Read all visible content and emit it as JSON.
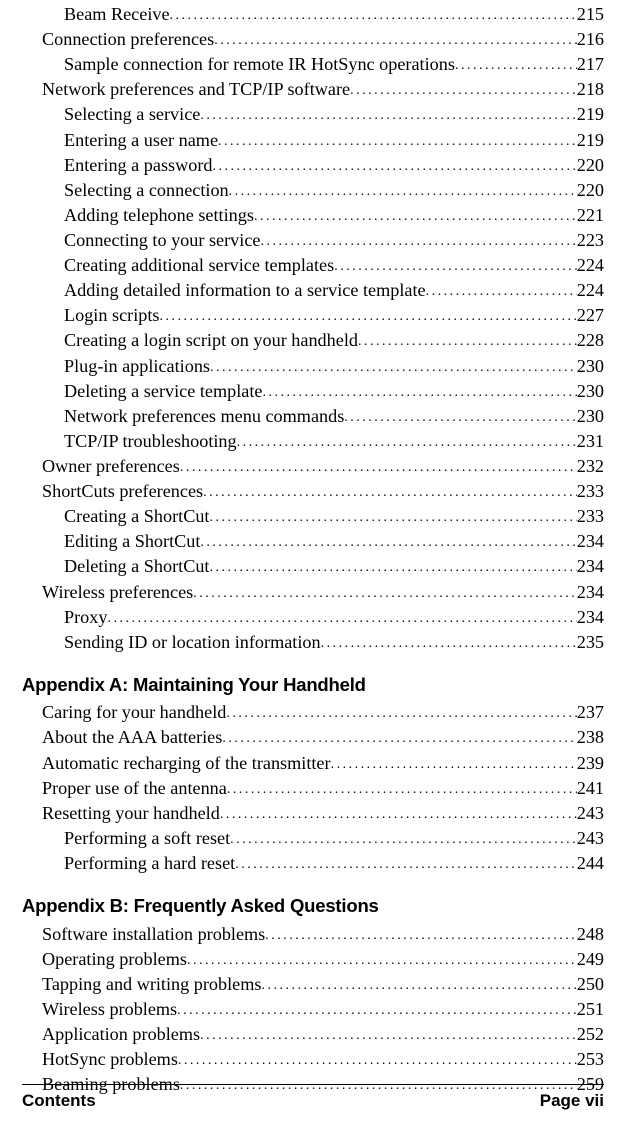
{
  "sections": [
    {
      "heading": null,
      "items": [
        {
          "label": "Beam Receive",
          "page": "215",
          "indent": 2
        },
        {
          "label": "Connection preferences",
          "page": "216",
          "indent": 1
        },
        {
          "label": "Sample connection for remote IR HotSync operations",
          "page": "217",
          "indent": 2
        },
        {
          "label": "Network preferences and TCP/IP software",
          "page": "218",
          "indent": 1
        },
        {
          "label": "Selecting a service",
          "page": "219",
          "indent": 2
        },
        {
          "label": "Entering a user name",
          "page": "219",
          "indent": 2
        },
        {
          "label": "Entering a password",
          "page": "220",
          "indent": 2
        },
        {
          "label": "Selecting a connection",
          "page": "220",
          "indent": 2
        },
        {
          "label": "Adding telephone settings",
          "page": "221",
          "indent": 2
        },
        {
          "label": "Connecting to your service",
          "page": "223",
          "indent": 2
        },
        {
          "label": "Creating additional service templates",
          "page": "224",
          "indent": 2
        },
        {
          "label": "Adding detailed information to a service template",
          "page": "224",
          "indent": 2
        },
        {
          "label": "Login scripts",
          "page": "227",
          "indent": 2
        },
        {
          "label": "Creating a login script on your handheld",
          "page": "228",
          "indent": 2
        },
        {
          "label": "Plug-in applications",
          "page": "230",
          "indent": 2
        },
        {
          "label": "Deleting a service template",
          "page": "230",
          "indent": 2
        },
        {
          "label": "Network preferences menu commands",
          "page": "230",
          "indent": 2
        },
        {
          "label": "TCP/IP troubleshooting",
          "page": "231",
          "indent": 2
        },
        {
          "label": "Owner preferences",
          "page": "232",
          "indent": 1
        },
        {
          "label": "ShortCuts preferences",
          "page": "233",
          "indent": 1
        },
        {
          "label": "Creating a ShortCut",
          "page": "233",
          "indent": 2
        },
        {
          "label": "Editing a ShortCut",
          "page": "234",
          "indent": 2
        },
        {
          "label": "Deleting a ShortCut",
          "page": "234",
          "indent": 2
        },
        {
          "label": "Wireless preferences",
          "page": "234",
          "indent": 1
        },
        {
          "label": "Proxy",
          "page": "234",
          "indent": 2
        },
        {
          "label": "Sending ID or location information",
          "page": "235",
          "indent": 2
        }
      ]
    },
    {
      "heading": "Appendix A: Maintaining Your Handheld",
      "items": [
        {
          "label": "Caring for your handheld",
          "page": "237",
          "indent": 1
        },
        {
          "label": "About the AAA batteries",
          "page": "238",
          "indent": 1
        },
        {
          "label": "Automatic recharging of the transmitter",
          "page": "239",
          "indent": 1
        },
        {
          "label": "Proper use of the antenna",
          "page": "241",
          "indent": 1
        },
        {
          "label": "Resetting your handheld",
          "page": "243",
          "indent": 1
        },
        {
          "label": "Performing a soft reset",
          "page": "243",
          "indent": 2
        },
        {
          "label": "Performing a hard reset",
          "page": "244",
          "indent": 2
        }
      ]
    },
    {
      "heading": "Appendix B: Frequently Asked Questions",
      "items": [
        {
          "label": "Software installation problems",
          "page": "248",
          "indent": 1
        },
        {
          "label": "Operating problems",
          "page": "249",
          "indent": 1
        },
        {
          "label": "Tapping and writing problems",
          "page": "250",
          "indent": 1
        },
        {
          "label": "Wireless problems",
          "page": "251",
          "indent": 1
        },
        {
          "label": "Application problems",
          "page": "252",
          "indent": 1
        },
        {
          "label": "HotSync problems",
          "page": "253",
          "indent": 1
        },
        {
          "label": "Beaming problems",
          "page": "259",
          "indent": 1
        }
      ]
    }
  ],
  "footer": {
    "left": "Contents",
    "right": "Page vii"
  }
}
